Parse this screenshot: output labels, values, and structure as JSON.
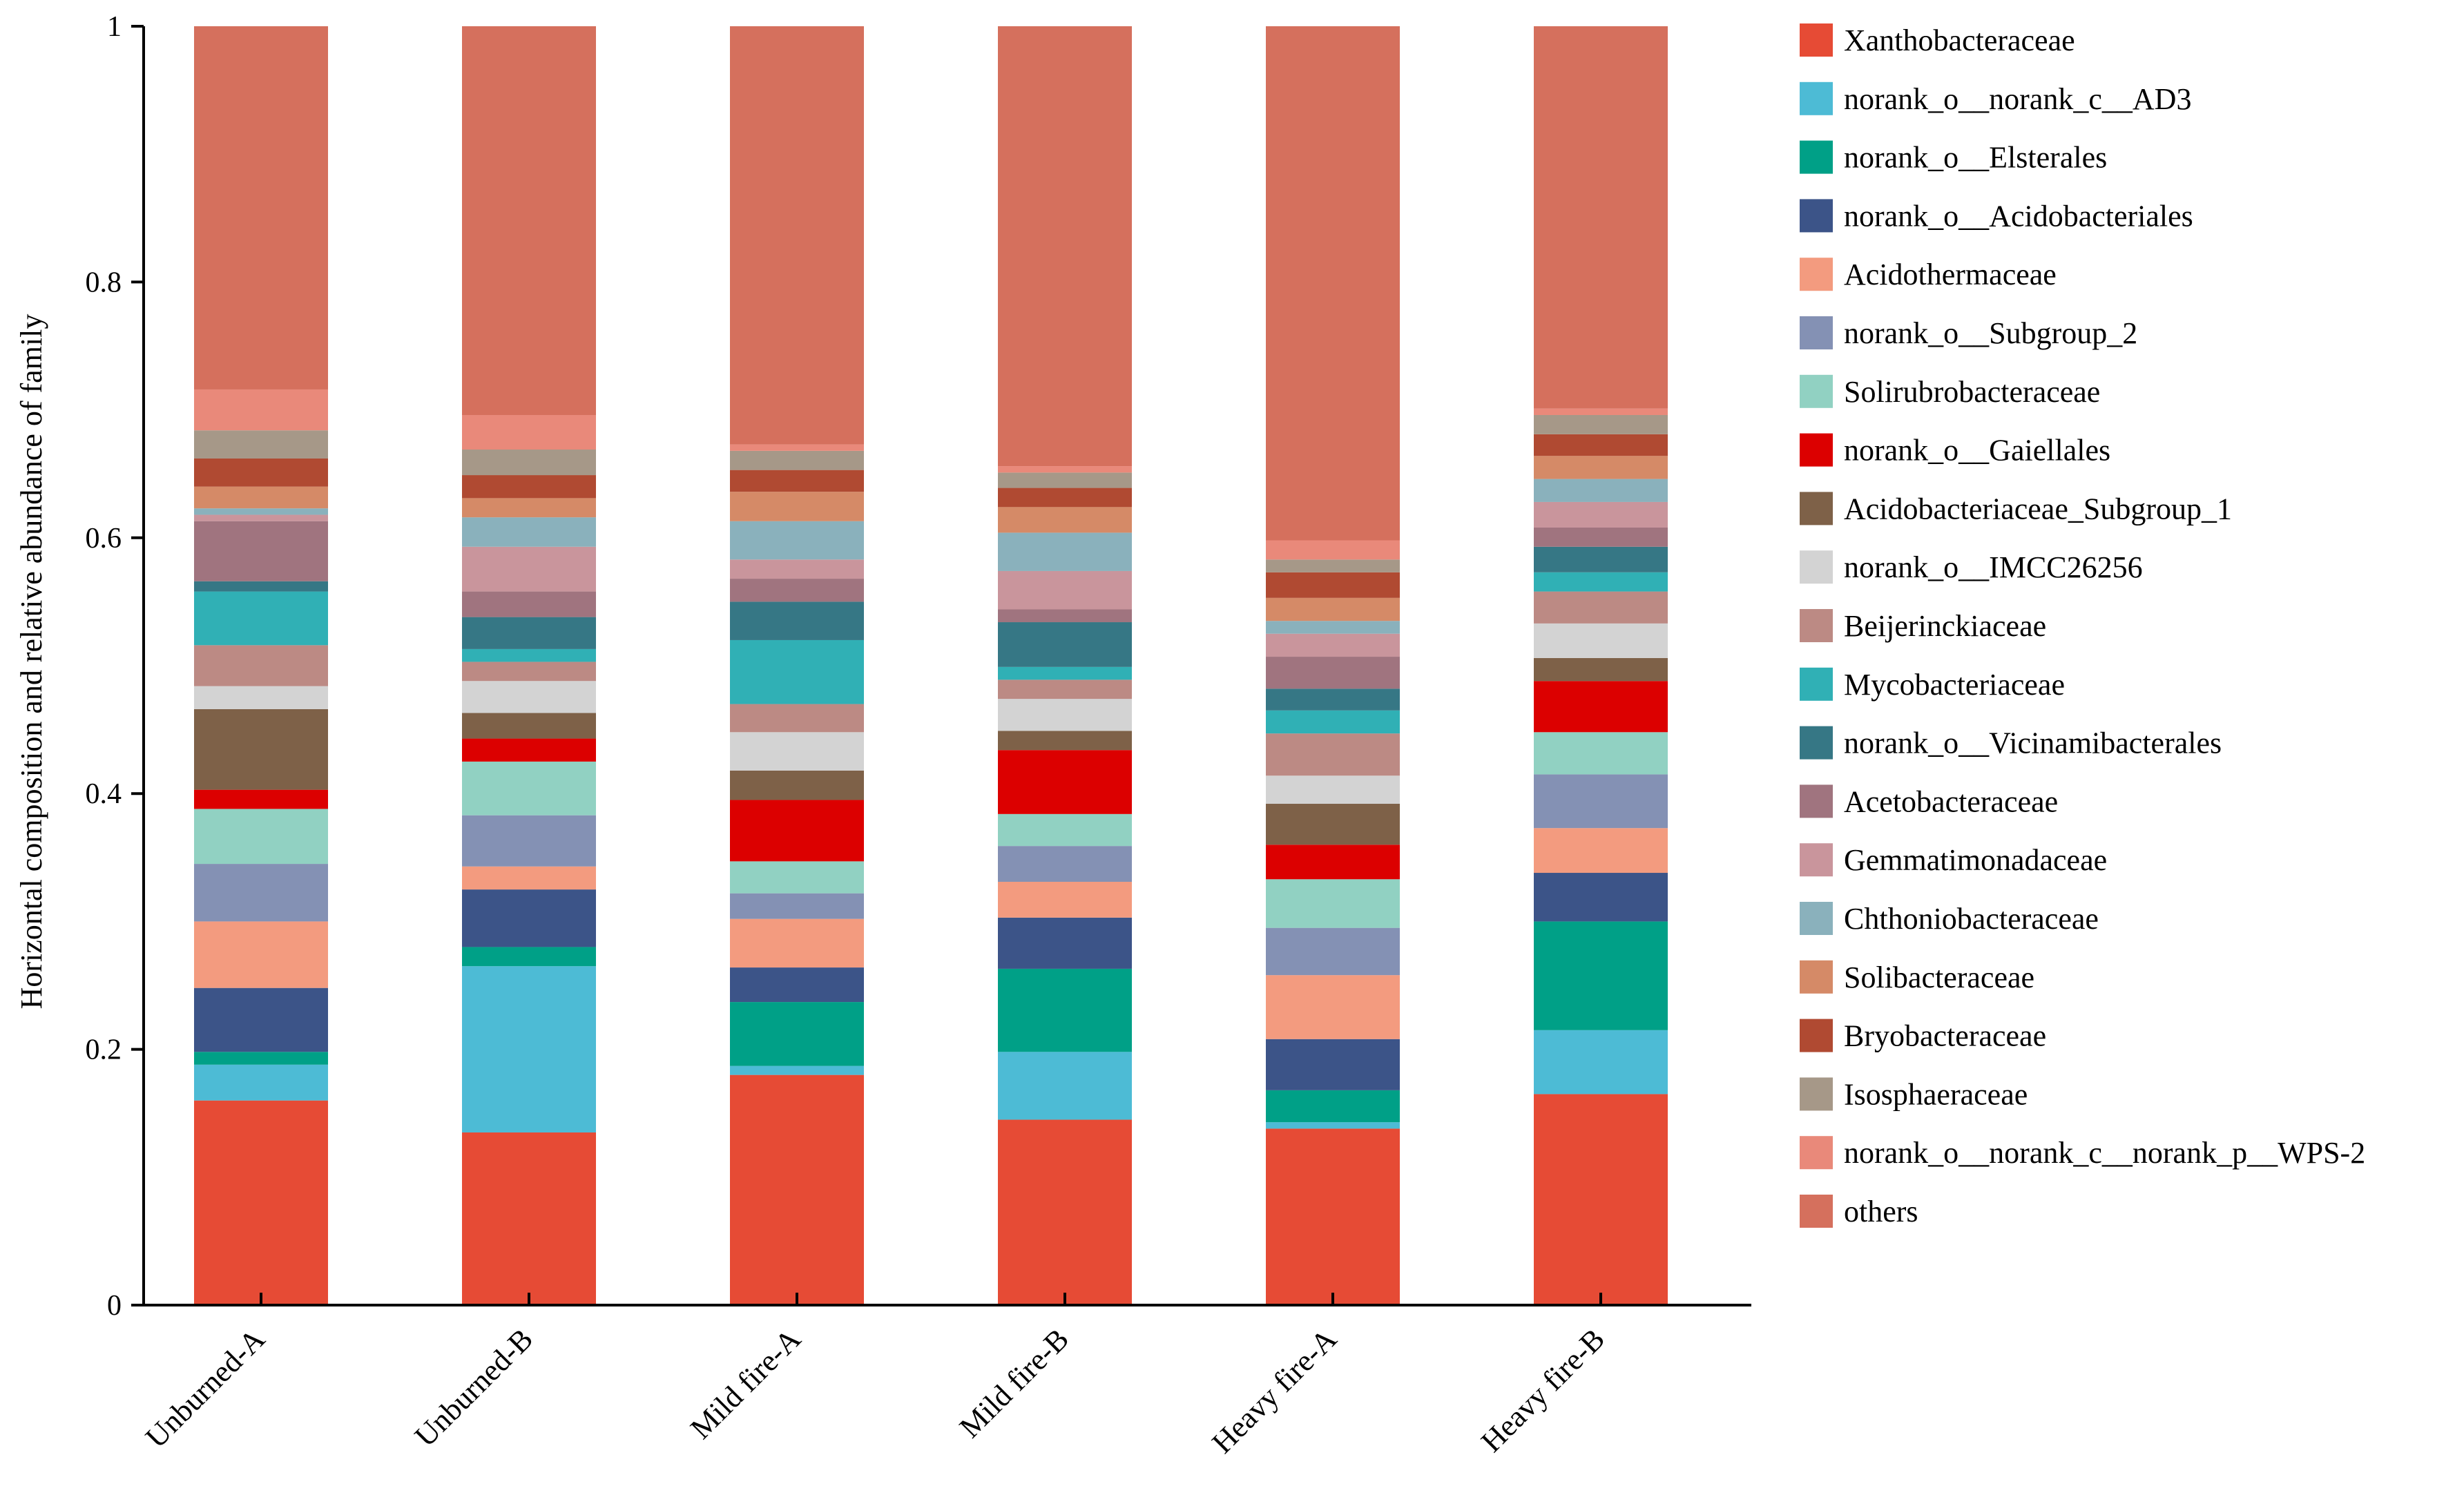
{
  "chart_data": {
    "type": "bar",
    "stacked": true,
    "title": "",
    "xlabel": "",
    "ylabel": "Horizontal composition and relative abundance of family",
    "ylim": [
      0,
      1
    ],
    "yticks": [
      "0",
      "0.2",
      "0.4",
      "0.6",
      "0.8",
      "1"
    ],
    "categories": [
      "Unburned-A",
      "Unburned-B",
      "Mild fire-A",
      "Mild fire-B",
      "Heavy fire-A",
      "Heavy fire-B"
    ],
    "legend_position": "right",
    "series": [
      {
        "name": "Xanthobacteraceae",
        "color": "#E64B35",
        "values": [
          0.16,
          0.135,
          0.18,
          0.145,
          0.138,
          0.165
        ]
      },
      {
        "name": "norank_o__norank_c__AD3",
        "color": "#4DBBD5",
        "values": [
          0.028,
          0.13,
          0.007,
          0.053,
          0.005,
          0.05
        ]
      },
      {
        "name": "norank_o__Elsterales",
        "color": "#00A087",
        "values": [
          0.01,
          0.015,
          0.05,
          0.065,
          0.025,
          0.085
        ]
      },
      {
        "name": "norank_o__Acidobacteriales",
        "color": "#3C5488",
        "values": [
          0.05,
          0.045,
          0.027,
          0.04,
          0.04,
          0.038
        ]
      },
      {
        "name": "Acidothermaceae",
        "color": "#F39B7F",
        "values": [
          0.052,
          0.018,
          0.038,
          0.028,
          0.05,
          0.035
        ]
      },
      {
        "name": "norank_o__Subgroup_2",
        "color": "#8491B4",
        "values": [
          0.045,
          0.04,
          0.02,
          0.028,
          0.037,
          0.042
        ]
      },
      {
        "name": "Solirubrobacteraceae",
        "color": "#91D1C2",
        "values": [
          0.043,
          0.042,
          0.025,
          0.025,
          0.038,
          0.033
        ]
      },
      {
        "name": "norank_o__Gaiellales",
        "color": "#DC0000",
        "values": [
          0.015,
          0.018,
          0.048,
          0.05,
          0.027,
          0.04
        ]
      },
      {
        "name": "Acidobacteriaceae_Subgroup_1",
        "color": "#7E6148",
        "values": [
          0.063,
          0.02,
          0.023,
          0.015,
          0.032,
          0.018
        ]
      },
      {
        "name": "norank_o__IMCC26256",
        "color": "#D3D3D3",
        "values": [
          0.018,
          0.025,
          0.03,
          0.025,
          0.022,
          0.027
        ]
      },
      {
        "name": "Beijerinckiaceae",
        "color": "#BC8A84",
        "values": [
          0.032,
          0.015,
          0.022,
          0.015,
          0.033,
          0.025
        ]
      },
      {
        "name": "Mycobacteriaceae",
        "color": "#30B0B5",
        "values": [
          0.042,
          0.01,
          0.05,
          0.01,
          0.018,
          0.015
        ]
      },
      {
        "name": "norank_o__Vicinamibacterales",
        "color": "#367785",
        "values": [
          0.008,
          0.025,
          0.03,
          0.035,
          0.017,
          0.02
        ]
      },
      {
        "name": "Acetobacteraceae",
        "color": "#A0747F",
        "values": [
          0.047,
          0.02,
          0.018,
          0.01,
          0.025,
          0.015
        ]
      },
      {
        "name": "Gemmatimonadaceae",
        "color": "#C9959C",
        "values": [
          0.005,
          0.035,
          0.015,
          0.03,
          0.018,
          0.02
        ]
      },
      {
        "name": "Chthoniobacteraceae",
        "color": "#8AB1BC",
        "values": [
          0.005,
          0.023,
          0.03,
          0.03,
          0.01,
          0.018
        ]
      },
      {
        "name": "Solibacteraceae",
        "color": "#D58A67",
        "values": [
          0.017,
          0.015,
          0.023,
          0.02,
          0.018,
          0.018
        ]
      },
      {
        "name": "Bryobacteraceae",
        "color": "#B04A32",
        "values": [
          0.022,
          0.018,
          0.017,
          0.015,
          0.02,
          0.017
        ]
      },
      {
        "name": "Isosphaeraceae",
        "color": "#A69888",
        "values": [
          0.022,
          0.02,
          0.015,
          0.012,
          0.01,
          0.015
        ]
      },
      {
        "name": "norank_o__norank_c__norank_p__WPS-2",
        "color": "#E9897A",
        "values": [
          0.032,
          0.027,
          0.005,
          0.005,
          0.015,
          0.005
        ]
      },
      {
        "name": "others",
        "color": "#D5705D",
        "values": [
          0.284,
          0.304,
          0.327,
          0.344,
          0.402,
          0.299
        ]
      }
    ]
  }
}
